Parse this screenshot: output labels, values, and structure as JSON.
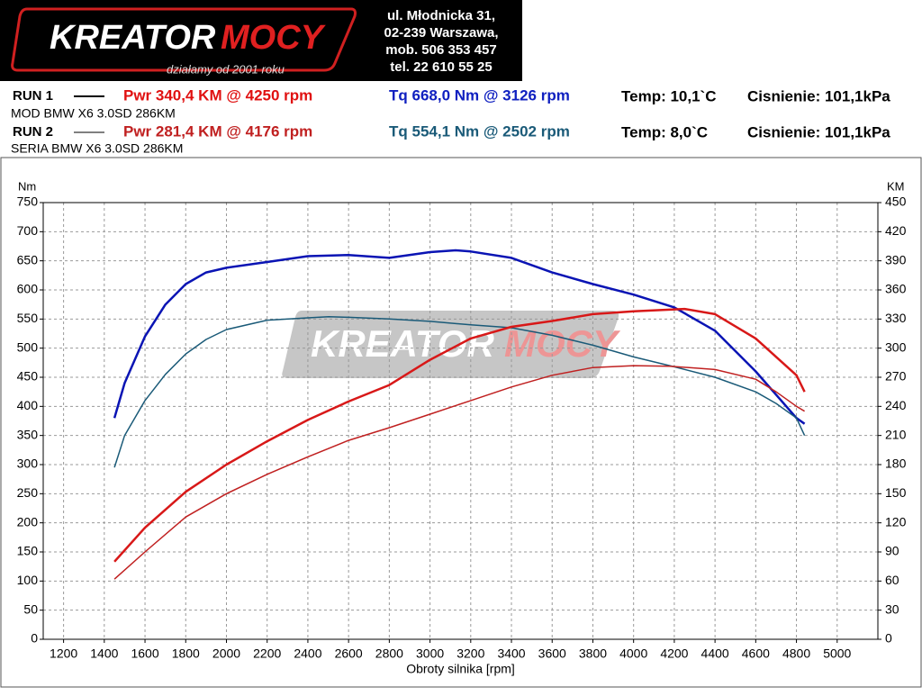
{
  "header": {
    "logo_a": "KREATOR",
    "logo_b": "MOCY",
    "tagline": "działamy od 2001 roku",
    "address": [
      "ul. Młodnicka 31,",
      "02-239  Warszawa,",
      "mob.  506 353 457",
      "tel.  22 610 55 25"
    ]
  },
  "runs": [
    {
      "label": "RUN 1",
      "pwr": "Pwr  340,4 KM @ 4250 rpm",
      "tq": "Tq 668,0 Nm @ 3126 rpm",
      "temp": "Temp: 10,1`C",
      "press": "Cisnienie: 101,1kPa",
      "car": "MOD BMW X6 3.0SD 286KM"
    },
    {
      "label": "RUN 2",
      "pwr": "Pwr  281,4 KM @ 4176 rpm",
      "tq": "Tq 554,1 Nm @ 2502 rpm",
      "temp": "Temp: 8,0`C",
      "press": "Cisnienie: 101,1kPa",
      "car": "SERIA BMW X6 3.0SD 286KM"
    }
  ],
  "chart_data": {
    "type": "line",
    "y_label": "Nm",
    "y2_label": "KM",
    "x_label": "Obroty silnika [rpm]",
    "xlim": [
      1100,
      5200
    ],
    "xticks": [
      1200,
      1400,
      1600,
      1800,
      2000,
      2200,
      2400,
      2600,
      2800,
      3000,
      3200,
      3400,
      3600,
      3800,
      4000,
      4200,
      4400,
      4600,
      4800,
      5000
    ],
    "ylim": [
      0,
      750
    ],
    "yticks": [
      0,
      50,
      100,
      150,
      200,
      250,
      300,
      350,
      400,
      450,
      500,
      550,
      600,
      650,
      700,
      750
    ],
    "y2lim": [
      0,
      450
    ],
    "y2ticks": [
      0,
      30,
      60,
      90,
      120,
      150,
      180,
      210,
      240,
      270,
      300,
      330,
      360,
      390,
      420,
      450
    ],
    "grid": true,
    "series": [
      {
        "color": "#0a14b4",
        "width": 2.5,
        "x": [
          1450,
          1500,
          1600,
          1700,
          1800,
          1900,
          2000,
          2200,
          2400,
          2600,
          2800,
          3000,
          3126,
          3200,
          3400,
          3600,
          3800,
          4000,
          4200,
          4400,
          4600,
          4700,
          4800,
          4840
        ],
        "values": [
          380,
          440,
          520,
          575,
          610,
          630,
          638,
          648,
          658,
          660,
          655,
          665,
          668,
          666,
          655,
          630,
          610,
          592,
          570,
          530,
          460,
          420,
          380,
          370
        ]
      },
      {
        "color": "#1a5a78",
        "width": 1.5,
        "x": [
          1450,
          1500,
          1600,
          1700,
          1800,
          1900,
          2000,
          2200,
          2400,
          2502,
          2600,
          2800,
          3000,
          3200,
          3400,
          3600,
          3800,
          4000,
          4200,
          4400,
          4600,
          4700,
          4800,
          4840
        ],
        "values": [
          295,
          350,
          410,
          455,
          490,
          515,
          532,
          548,
          552,
          554,
          553,
          550,
          546,
          540,
          535,
          522,
          505,
          485,
          468,
          450,
          425,
          405,
          380,
          350
        ]
      },
      {
        "axis": "y2",
        "color": "#d81818",
        "width": 2.5,
        "x": [
          1450,
          1600,
          1800,
          2000,
          2200,
          2400,
          2600,
          2800,
          3000,
          3200,
          3400,
          3600,
          3800,
          4000,
          4250,
          4400,
          4600,
          4800,
          4840
        ],
        "values": [
          80,
          115,
          152,
          180,
          204,
          226,
          245,
          262,
          288,
          310,
          322,
          328,
          335,
          338,
          340.4,
          335,
          310,
          272,
          255
        ]
      },
      {
        "axis": "y2",
        "color": "#c02020",
        "width": 1.5,
        "x": [
          1450,
          1600,
          1800,
          2000,
          2200,
          2400,
          2600,
          2800,
          3000,
          3200,
          3400,
          3600,
          3800,
          4000,
          4176,
          4400,
          4600,
          4700,
          4800,
          4840
        ],
        "values": [
          62,
          90,
          126,
          150,
          170,
          188,
          205,
          218,
          232,
          246,
          260,
          272,
          280,
          282,
          281.4,
          278,
          268,
          255,
          240,
          235
        ]
      }
    ]
  }
}
